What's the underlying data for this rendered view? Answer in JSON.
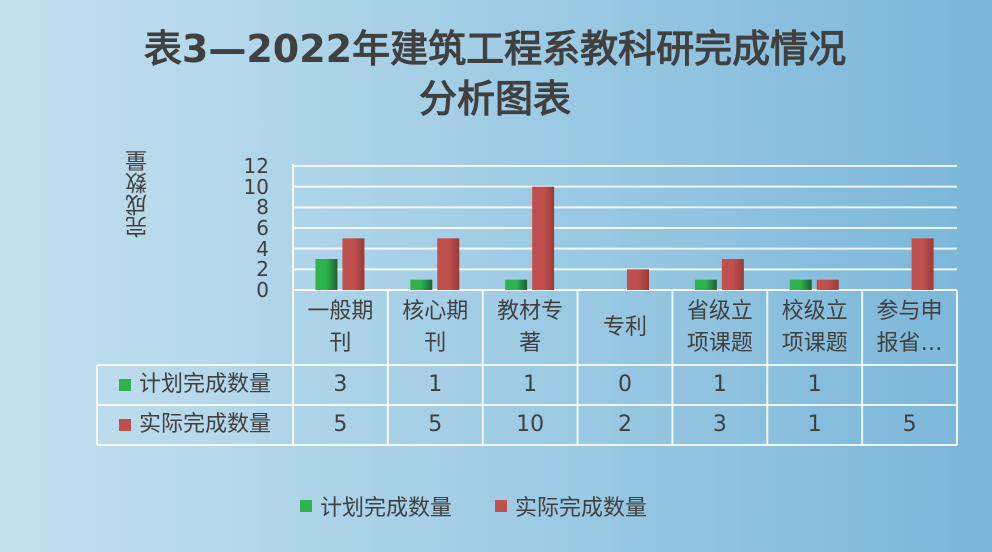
{
  "chart_data": {
    "type": "bar",
    "title": "表3—2022年建筑工程系教科研完成情况分析图表",
    "ylabel": "完成数量",
    "categories": [
      "一般期刊",
      "核心期刊",
      "教材专著",
      "专利",
      "省级立项课题",
      "校级立项课题",
      "参与申报省…"
    ],
    "series": [
      {
        "name": "计划完成数量",
        "color": "#2eb34f",
        "values": [
          3,
          1,
          1,
          0,
          1,
          1,
          null
        ]
      },
      {
        "name": "实际完成数量",
        "color": "#c0504d",
        "values": [
          5,
          5,
          10,
          2,
          3,
          1,
          5
        ]
      }
    ],
    "ylim": [
      0,
      12
    ],
    "yticks": [
      0,
      2,
      4,
      6,
      8,
      10,
      12
    ],
    "grid": true
  }
}
